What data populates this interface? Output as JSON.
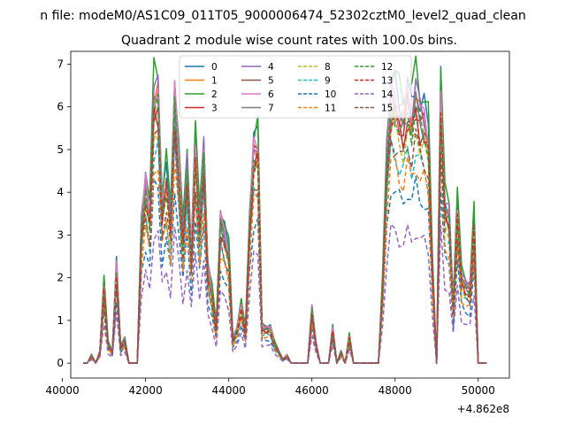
{
  "page": {
    "suptitle": "n file: modeM0/AS1C09_011T05_9000006474_52302cztM0_level2_quad_clean",
    "title": "Quadrant 2 module wise count rates with 100.0s bins."
  },
  "chart_data": {
    "type": "line",
    "title": "Quadrant 2 module wise count rates with 100.0s bins.",
    "xlabel": "",
    "ylabel": "",
    "x_offset_label": "+4.862e8",
    "x_offset": 486200000,
    "xlim": [
      40200,
      50750
    ],
    "ylim": [
      -0.35,
      7.3
    ],
    "xticks": [
      40000,
      42000,
      44000,
      46000,
      48000,
      50000
    ],
    "yticks": [
      0,
      1,
      2,
      3,
      4,
      5,
      6,
      7
    ],
    "grid": false,
    "legend": {
      "placement": "top-center",
      "columns": 4
    },
    "envelope": {
      "x": [
        40500,
        40600,
        40700,
        40800,
        40900,
        41000,
        41100,
        41200,
        41300,
        41400,
        41500,
        41600,
        41700,
        41800,
        41900,
        42000,
        42100,
        42200,
        42300,
        42400,
        42500,
        42600,
        42700,
        42800,
        42900,
        43000,
        43100,
        43200,
        43300,
        43400,
        43500,
        43600,
        43700,
        43800,
        43900,
        44000,
        44100,
        44200,
        44300,
        44400,
        44500,
        44600,
        44700,
        44800,
        44900,
        45000,
        45100,
        45200,
        45300,
        45400,
        45500,
        45600,
        45700,
        45800,
        45900,
        46000,
        46100,
        46200,
        46300,
        46400,
        46500,
        46600,
        46700,
        46800,
        46900,
        47000,
        47100,
        47200,
        47300,
        47400,
        47500,
        47600,
        47700,
        47800,
        47900,
        48000,
        48100,
        48200,
        48300,
        48400,
        48500,
        48600,
        48700,
        48800,
        48900,
        49000,
        49100,
        49200,
        49300,
        49400,
        49500,
        49600,
        49700,
        49800,
        49900,
        50000,
        50100,
        50200
      ],
      "y": [
        0,
        0,
        0.2,
        0,
        0.3,
        2.0,
        0.5,
        0.3,
        2.5,
        0.4,
        0.6,
        0,
        0,
        0,
        3.5,
        4.6,
        3.8,
        6.8,
        6.9,
        4.0,
        4.8,
        3.6,
        6.9,
        5.2,
        3.2,
        5.0,
        2.8,
        5.6,
        3.5,
        5.4,
        2.4,
        1.8,
        0.9,
        3.7,
        3.3,
        2.8,
        0.6,
        0.9,
        1.5,
        0.8,
        3.6,
        5.5,
        5.6,
        0.9,
        0.9,
        0.9,
        0.5,
        0.3,
        0.1,
        0.2,
        0,
        0,
        0,
        0,
        0,
        1.4,
        0.5,
        0,
        0,
        0,
        0.9,
        0,
        0.3,
        0,
        0.7,
        0,
        0,
        0,
        0,
        0,
        0,
        0,
        2.0,
        5.2,
        6.9,
        6.8,
        6.4,
        6.2,
        6.8,
        6.3,
        6.9,
        6.4,
        6.3,
        5.8,
        2.5,
        0,
        6.9,
        4.0,
        3.8,
        1.5,
        4.0,
        2.2,
        2.0,
        1.9,
        3.6,
        0,
        0,
        0
      ]
    },
    "series": [
      {
        "name": "0",
        "color": "#1f77b4",
        "dash": "solid",
        "scale": 0.95
      },
      {
        "name": "1",
        "color": "#ff7f0e",
        "dash": "solid",
        "scale": 0.9
      },
      {
        "name": "2",
        "color": "#2ca02c",
        "dash": "solid",
        "scale": 1.0
      },
      {
        "name": "3",
        "color": "#d62728",
        "dash": "solid",
        "scale": 0.88
      },
      {
        "name": "4",
        "color": "#9467bd",
        "dash": "solid",
        "scale": 0.93
      },
      {
        "name": "5",
        "color": "#8c564b",
        "dash": "solid",
        "scale": 0.85
      },
      {
        "name": "6",
        "color": "#e377c2",
        "dash": "solid",
        "scale": 0.91
      },
      {
        "name": "7",
        "color": "#7f7f7f",
        "dash": "solid",
        "scale": 0.87
      },
      {
        "name": "8",
        "color": "#bcbd22",
        "dash": "dashed",
        "scale": 0.8
      },
      {
        "name": "9",
        "color": "#17becf",
        "dash": "dashed",
        "scale": 0.72
      },
      {
        "name": "10",
        "color": "#1f77b4",
        "dash": "dashed",
        "scale": 0.6
      },
      {
        "name": "11",
        "color": "#ff7f0e",
        "dash": "dashed",
        "scale": 0.68
      },
      {
        "name": "12",
        "color": "#2ca02c",
        "dash": "dashed",
        "scale": 0.86
      },
      {
        "name": "13",
        "color": "#d62728",
        "dash": "dashed",
        "scale": 0.84
      },
      {
        "name": "14",
        "color": "#9467bd",
        "dash": "dashed",
        "scale": 0.45
      },
      {
        "name": "15",
        "color": "#8c564b",
        "dash": "dashed",
        "scale": 0.76
      }
    ]
  }
}
